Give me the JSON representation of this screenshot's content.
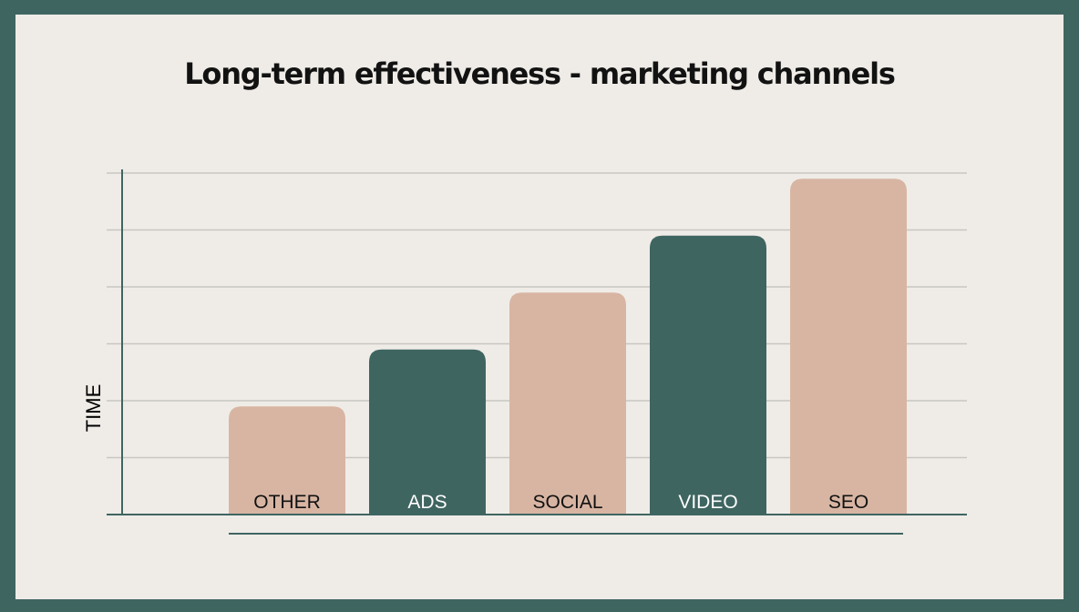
{
  "chart_data": {
    "type": "bar",
    "title": "Long-term effectiveness - marketing channels",
    "xlabel": "",
    "ylabel": "TIME",
    "categories": [
      "OTHER",
      "ADS",
      "SOCIAL",
      "VIDEO",
      "SEO"
    ],
    "values": [
      1.9,
      2.9,
      3.9,
      4.9,
      5.9
    ],
    "ylim": [
      0,
      6
    ],
    "grid": true,
    "legend": "none",
    "bar_colors": [
      "#d8b5a3",
      "#3f6561",
      "#d8b5a3",
      "#3f6561",
      "#d8b5a3"
    ],
    "label_colors": [
      "#111111",
      "#ffffff",
      "#111111",
      "#ffffff",
      "#111111"
    ],
    "axis_color": "#3f6561",
    "grid_color": "#c9c6c1"
  }
}
